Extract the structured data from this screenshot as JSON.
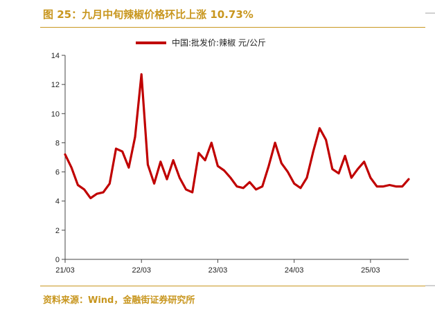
{
  "header": {
    "title": "图 25：九月中旬辣椒价格环比上涨 10.73%"
  },
  "footer": {
    "source": "资料来源：Wind，金融街证券研究所"
  },
  "chart_data": {
    "type": "line",
    "title": "",
    "xlabel": "",
    "ylabel": "",
    "ylim": [
      0,
      14
    ],
    "yticks": [
      0,
      2,
      4,
      6,
      8,
      10,
      12,
      14
    ],
    "xticks": [
      "21/03",
      "22/03",
      "23/03",
      "24/03",
      "25/03"
    ],
    "xlim": [
      "2021-03",
      "2025-09"
    ],
    "grid": false,
    "legend": "top-center",
    "series": [
      {
        "name": "中国:批发价:辣椒 元/公斤",
        "color": "#c00000",
        "x": [
          "2021-03",
          "2021-04",
          "2021-05",
          "2021-06",
          "2021-07",
          "2021-08",
          "2021-09",
          "2021-10",
          "2021-11",
          "2021-12",
          "2022-01",
          "2022-02",
          "2022-03",
          "2022-04",
          "2022-05",
          "2022-06",
          "2022-07",
          "2022-08",
          "2022-09",
          "2022-10",
          "2022-11",
          "2022-12",
          "2023-01",
          "2023-02",
          "2023-03",
          "2023-04",
          "2023-05",
          "2023-06",
          "2023-07",
          "2023-08",
          "2023-09",
          "2023-10",
          "2023-11",
          "2023-12",
          "2024-01",
          "2024-02",
          "2024-03",
          "2024-04",
          "2024-05",
          "2024-06",
          "2024-07",
          "2024-08",
          "2024-09",
          "2024-10",
          "2024-11",
          "2024-12",
          "2025-01",
          "2025-02",
          "2025-03",
          "2025-04",
          "2025-05",
          "2025-06",
          "2025-07",
          "2025-08",
          "2025-09"
        ],
        "values": [
          7.2,
          6.3,
          5.1,
          4.8,
          4.2,
          4.5,
          4.6,
          5.2,
          7.6,
          7.4,
          6.3,
          8.4,
          12.7,
          6.5,
          5.2,
          6.7,
          5.5,
          6.8,
          5.6,
          4.8,
          4.6,
          7.3,
          6.8,
          8.0,
          6.4,
          6.1,
          5.6,
          5.0,
          4.9,
          5.3,
          4.8,
          5.0,
          6.4,
          8.0,
          6.6,
          6.0,
          5.2,
          4.9,
          5.6,
          7.4,
          9.0,
          8.2,
          6.2,
          5.9,
          7.1,
          5.6,
          6.2,
          6.7,
          5.6,
          5.0,
          5.0,
          5.1,
          5.0,
          5.0,
          5.5
        ]
      }
    ]
  }
}
